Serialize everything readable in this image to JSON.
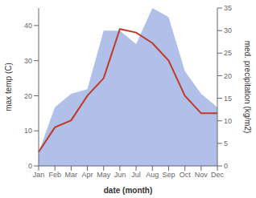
{
  "chart_data": {
    "type": "combo",
    "xlabel": "date (month)",
    "ylabel": "max temp (C)",
    "y2label": "med. precipitation (kg/m2)",
    "categories": [
      "Jan",
      "Feb",
      "Mar",
      "Apr",
      "May",
      "Jun",
      "Jul",
      "Aug",
      "Sep",
      "Oct",
      "Nov",
      "Dec"
    ],
    "series": [
      {
        "type": "area",
        "axis": "y2",
        "color": "#b0c0e8",
        "values": [
          3,
          13,
          16,
          17,
          30,
          30,
          27,
          35,
          33,
          21,
          16,
          13
        ]
      },
      {
        "type": "line",
        "color": "#c0392b",
        "values": [
          4,
          11,
          13,
          20,
          25,
          39,
          38,
          35,
          30,
          20,
          15,
          15
        ]
      }
    ],
    "ylim": [
      0,
      45
    ],
    "yticks": [
      0,
      10,
      20,
      30,
      40
    ],
    "y2lim": [
      0,
      35
    ],
    "y2ticks": [
      0,
      5,
      10,
      15,
      20,
      25,
      30,
      35
    ],
    "grid": false
  }
}
